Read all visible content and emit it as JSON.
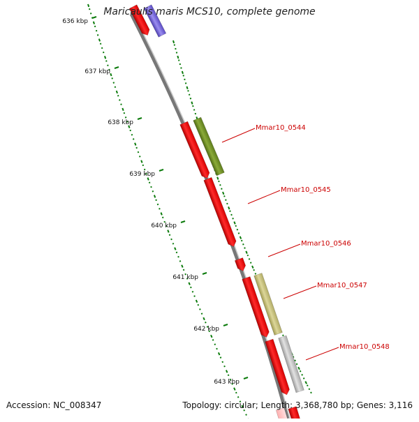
{
  "title": "Maricaulis maris MCS10, complete genome",
  "footer": {
    "accession": "Accession: NC_008347",
    "summary": "Topology: circular; Length: 3,368,780 bp; Genes: 3,116"
  },
  "colors": {
    "forward_cds": "#ff0000",
    "cog_green": "#6b8e23",
    "cog_khaki": "#c8c27a",
    "cog_gray": "#bdbdbd",
    "cog_blue": "#6a5acd",
    "backbone": "#888888",
    "tick_green": "#0a7a0a",
    "label_red": "#cc0000"
  },
  "ruler": {
    "unit": "kbp",
    "ticks": [
      "636 kbp",
      "637 kbp",
      "638 kbp",
      "639 kbp",
      "640 kbp",
      "641 kbp",
      "642 kbp",
      "643 kbp"
    ]
  },
  "genes": [
    {
      "label": "Mmar10_0544"
    },
    {
      "label": "Mmar10_0545"
    },
    {
      "label": "Mmar10_0546"
    },
    {
      "label": "Mmar10_0547"
    },
    {
      "label": "Mmar10_0548"
    }
  ]
}
